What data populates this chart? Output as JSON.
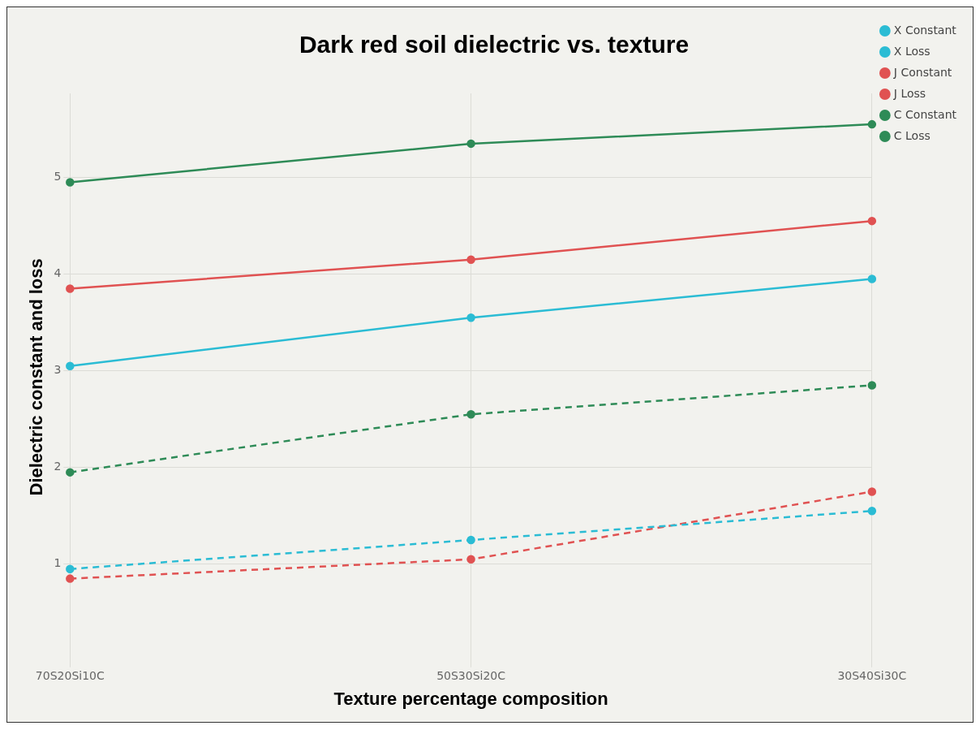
{
  "chart_data": {
    "type": "line",
    "title": "Dark red soil dielectric vs. texture",
    "xlabel": "Texture percentage composition",
    "ylabel": "Dielectric constant and loss",
    "categories": [
      "70S20Si10C",
      "50S30Si20C",
      "30S40Si30C"
    ],
    "series": [
      {
        "name": "X Constant",
        "color": "#2bbcd4",
        "values": [
          3.05,
          3.55,
          3.95
        ],
        "line_style": "solid"
      },
      {
        "name": "X Loss",
        "color": "#2bbcd4",
        "values": [
          0.95,
          1.25,
          1.55
        ],
        "line_style": "dashed"
      },
      {
        "name": "J Constant",
        "color": "#e05252",
        "values": [
          3.85,
          4.15,
          4.55
        ],
        "line_style": "solid"
      },
      {
        "name": "J Loss",
        "color": "#e05252",
        "values": [
          0.85,
          1.05,
          1.75
        ],
        "line_style": "dashed"
      },
      {
        "name": "C Constant",
        "color": "#2e8b57",
        "values": [
          4.95,
          5.35,
          5.55
        ],
        "line_style": "solid"
      },
      {
        "name": "C Loss",
        "color": "#2e8b57",
        "values": [
          1.95,
          2.55,
          2.85
        ],
        "line_style": "dashed"
      }
    ],
    "ylim": [
      0,
      5.87
    ],
    "yticks": [
      1,
      2,
      3,
      4,
      5
    ],
    "grid": true,
    "legend": "top right",
    "marker": "circle"
  }
}
